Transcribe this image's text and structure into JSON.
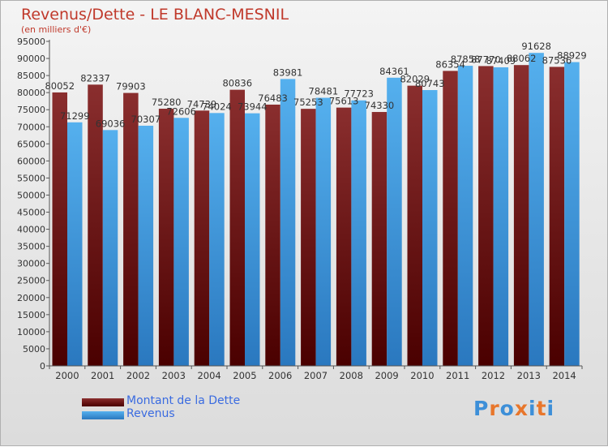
{
  "header": {
    "title": "Revenus/Dette - LE BLANC-MESNIL",
    "subtitle": "(en milliers d'€)"
  },
  "colors": {
    "dette": "#6b1a1a",
    "revenus": "#3d9ad8",
    "title": "#c0392b",
    "legend_text": "#3a6be0"
  },
  "legend": {
    "dette": "Montant de la Dette",
    "revenus": "Revenus"
  },
  "logo": {
    "text": "Proxiti",
    "icon": "proxiti-logo"
  },
  "chart_data": {
    "type": "bar",
    "title": "Revenus/Dette - LE BLANC-MESNIL",
    "subtitle": "(en milliers d'€)",
    "categories": [
      "2000",
      "2001",
      "2002",
      "2003",
      "2004",
      "2005",
      "2006",
      "2007",
      "2008",
      "2009",
      "2010",
      "2011",
      "2012",
      "2013",
      "2014"
    ],
    "series": [
      {
        "name": "Montant de la Dette",
        "values": [
          80052,
          82337,
          79903,
          75280,
          74739,
          80836,
          76483,
          75253,
          75613,
          74330,
          82029,
          86354,
          87770,
          88062,
          87536
        ]
      },
      {
        "name": "Revenus",
        "values": [
          71299,
          69036,
          70307,
          72606,
          74024,
          73944,
          83981,
          78481,
          77723,
          84361,
          80743,
          87858,
          87409,
          91628,
          88929
        ]
      }
    ],
    "ylim": [
      0,
      95000
    ],
    "ytick_step": 5000,
    "grid": false,
    "legend_position": "bottom-left"
  }
}
